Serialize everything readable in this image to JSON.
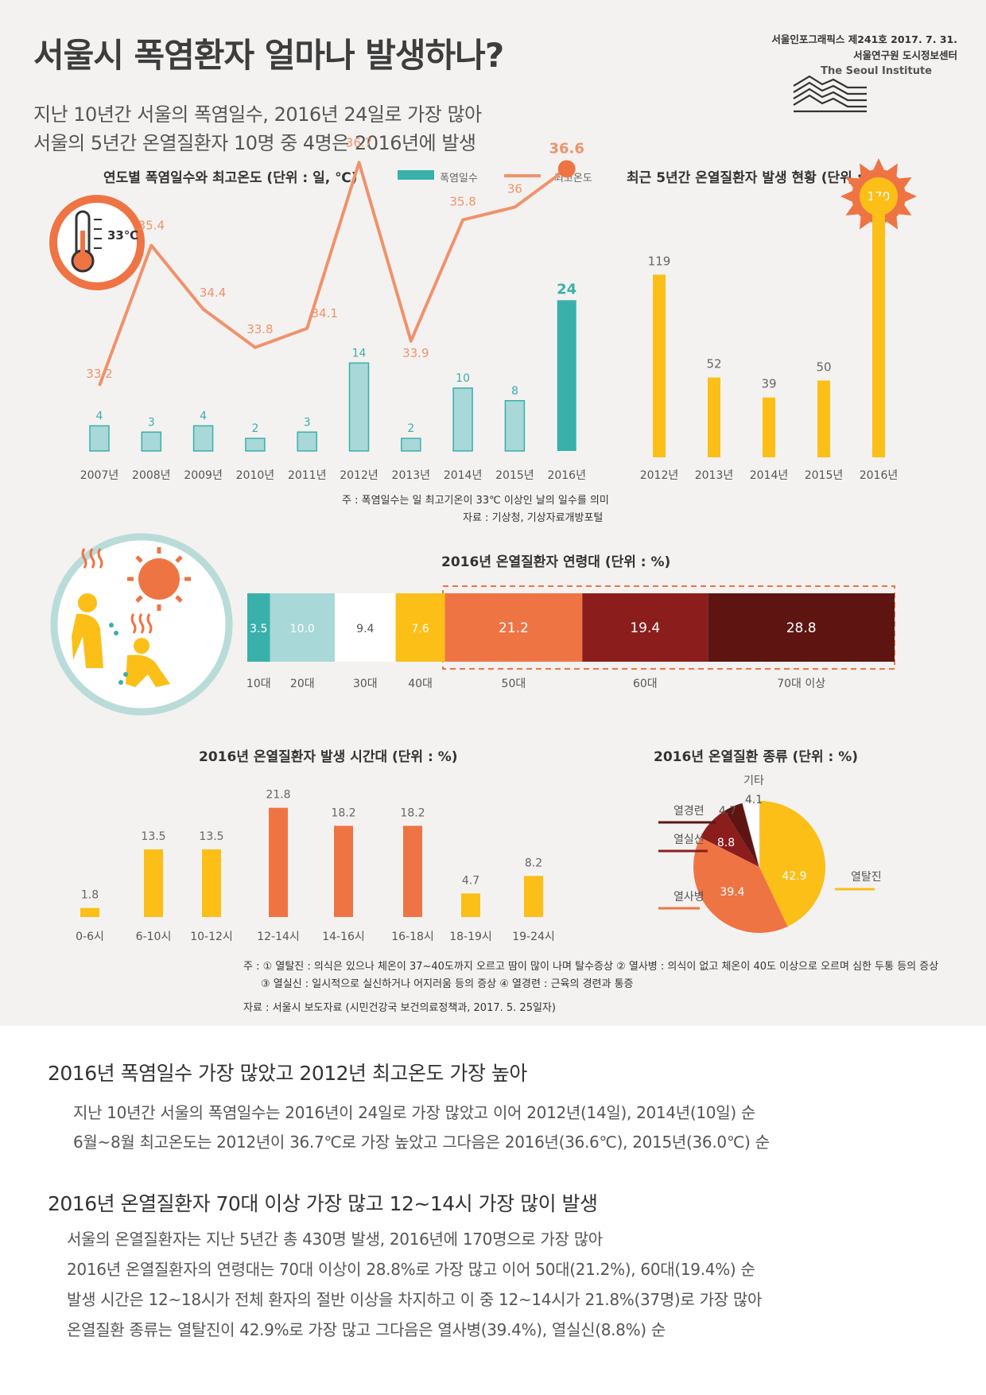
{
  "header": {
    "title": "서울시 폭염환자 얼마나 발생하나?",
    "subtitle_1": "지난 10년간 서울의 폭염일수, 2016년 24일로 가장 많아",
    "subtitle_2": "서울의 5년간 온열질환자 10명 중 4명은 2016년에 발생",
    "pub_info": "서울인포그래픽스 제241호 2017. 7. 31.",
    "org_kr": "서울연구원 도시정보센터",
    "org_en": "The Seoul Institute"
  },
  "colors": {
    "teal": "#3ab0aa",
    "teal_light": "#a8d8d8",
    "orange_line": "#f0926c",
    "orange": "#ef7444",
    "yellow": "#fbbf18",
    "red": "#8c1d1d",
    "dark_red": "#5e1512"
  },
  "chart_data": [
    {
      "id": "heatwave",
      "type": "bar+line",
      "title": "연도별 폭염일수와 최고온도 (단위 : 일, ℃)",
      "legend": [
        "폭염일수",
        "최고온도"
      ],
      "categories": [
        "2007년",
        "2008년",
        "2009년",
        "2010년",
        "2011년",
        "2012년",
        "2013년",
        "2014년",
        "2015년",
        "2016년"
      ],
      "series": [
        {
          "name": "폭염일수",
          "values": [
            4,
            3,
            4,
            2,
            3,
            14,
            2,
            10,
            8,
            24
          ],
          "labels": [
            "4",
            "3",
            "4",
            "2",
            "3",
            "14",
            "2",
            "10",
            "8",
            "24"
          ]
        },
        {
          "name": "최고온도",
          "values": [
            33.2,
            35.4,
            34.4,
            33.8,
            34.1,
            36.7,
            33.9,
            35.8,
            36.0,
            36.6
          ],
          "labels": [
            "33.2",
            "35.4",
            "34.4",
            "33.8",
            "34.1",
            "36.7",
            "33.9",
            "35.8",
            "36",
            "36.6"
          ]
        }
      ],
      "thermo_label": "33℃",
      "note": "주 : 폭염일수는 일 최고기온이 33℃ 이상인 날의 일수를 의미",
      "source": "자료 : 기상청, 기상자료개방포털"
    },
    {
      "id": "patients",
      "type": "bar",
      "title": "최근 5년간 온열질환자 발생 현황 (단위 : 명)",
      "categories": [
        "2012년",
        "2013년",
        "2014년",
        "2015년",
        "2016년"
      ],
      "values": [
        119,
        52,
        39,
        50,
        170
      ],
      "labels": [
        "119",
        "52",
        "39",
        "50",
        "170"
      ]
    },
    {
      "id": "age",
      "type": "stacked-bar",
      "title": "2016년 온열질환자 연령대 (단위 : %)",
      "categories": [
        "10대",
        "20대",
        "30대",
        "40대",
        "50대",
        "60대",
        "70대 이상"
      ],
      "values": [
        3.5,
        10.0,
        9.4,
        7.6,
        21.2,
        19.4,
        28.8
      ],
      "labels": [
        "3.5",
        "10.0",
        "9.4",
        "7.6",
        "21.2",
        "19.4",
        "28.8"
      ]
    },
    {
      "id": "time",
      "type": "bar",
      "title": "2016년 온열질환자 발생 시간대 (단위 : %)",
      "categories": [
        "0-6시",
        "6-10시",
        "10-12시",
        "12-14시",
        "14-16시",
        "16-18시",
        "18-19시",
        "19-24시"
      ],
      "values": [
        1.8,
        13.5,
        13.5,
        21.8,
        18.2,
        18.2,
        4.7,
        8.2
      ],
      "labels": [
        "1.8",
        "13.5",
        "13.5",
        "21.8",
        "18.2",
        "18.2",
        "4.7",
        "8.2"
      ]
    },
    {
      "id": "types",
      "type": "pie",
      "title": "2016년 온열질환 종류 (단위 : %)",
      "categories": [
        "열탈진",
        "열사병",
        "열실신",
        "열경련",
        "기타"
      ],
      "values": [
        42.9,
        39.4,
        8.8,
        4.7,
        4.1
      ],
      "labels": [
        "42.9",
        "39.4",
        "8.8",
        "4.7",
        "4.1"
      ]
    }
  ],
  "notes": {
    "line1": "주 : ① 열탈진 : 의식은 있으나 체온이 37~40도까지 오르고 땀이 많이 나며 탈수증상 ② 열사병 : 의식이 없고 체온이 40도 이상으로 오르며 심한 두통 등의 증상",
    "line2": "③ 열실신 : 일시적으로 실신하거나 어지러움 등의 증상 ④ 열경련 : 근육의 경련과 통증",
    "source": "자료 : 서울시 보도자료 (시민건강국 보건의료정책과, 2017. 5. 25일자)"
  },
  "summary": {
    "h1": "2016년 폭염일수 가장 많았고 2012년 최고온도 가장 높아",
    "p1": "지난 10년간 서울의 폭염일수는 2016년이 24일로 가장 많았고 이어 2012년(14일), 2014년(10일) 순",
    "p2": "6월~8월 최고온도는 2012년이 36.7℃로 가장 높았고 그다음은 2016년(36.6℃), 2015년(36.0℃) 순",
    "h2": "2016년 온열질환자 70대 이상 가장 많고 12~14시 가장 많이 발생",
    "p3": "서울의 온열질환자는 지난 5년간 총 430명 발생, 2016년에 170명으로 가장 많아",
    "p4": "2016년 온열질환자의 연령대는 70대 이상이 28.8%로 가장 많고 이어 50대(21.2%), 60대(19.4%) 순",
    "p5": "발생 시간은 12~18시가 전체 환자의 절반 이상을 차지하고 이 중 12~14시가 21.8%(37명)로 가장 많아",
    "p6": "온열질환 종류는 열탈진이 42.9%로 가장 많고 그다음은 열사병(39.4%), 열실신(8.8%) 순"
  }
}
